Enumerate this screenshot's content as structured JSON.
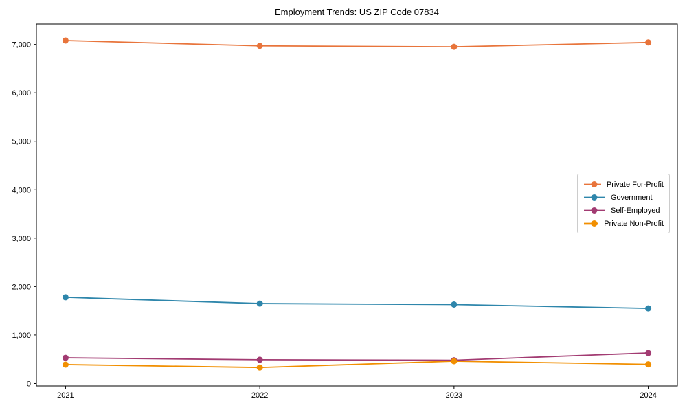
{
  "chart_data": {
    "type": "line",
    "title": "Employment Trends: US ZIP Code 07834",
    "xlabel": "",
    "ylabel": "",
    "categories": [
      "2021",
      "2022",
      "2023",
      "2024"
    ],
    "x": [
      2021,
      2022,
      2023,
      2024
    ],
    "series": [
      {
        "name": "Private For-Profit",
        "color": "#E8743B",
        "values": [
          7080,
          6970,
          6950,
          7040
        ]
      },
      {
        "name": "Government",
        "color": "#2E86AB",
        "values": [
          1780,
          1650,
          1630,
          1550
        ]
      },
      {
        "name": "Self-Employed",
        "color": "#A23B72",
        "values": [
          530,
          490,
          480,
          630
        ]
      },
      {
        "name": "Private Non-Profit",
        "color": "#F18F01",
        "values": [
          390,
          330,
          460,
          395
        ]
      }
    ],
    "ytick_values": [
      0,
      1000,
      2000,
      3000,
      4000,
      5000,
      6000,
      7000
    ],
    "ytick_labels": [
      "0",
      "1,000",
      "2,000",
      "3,000",
      "4,000",
      "5,000",
      "6,000",
      "7,000"
    ],
    "ylim": [
      -50,
      7420
    ],
    "xlim": [
      2020.85,
      2024.15
    ],
    "grid": false,
    "legend_position": "center right",
    "marker": "circle",
    "axis_color": "#000000"
  }
}
